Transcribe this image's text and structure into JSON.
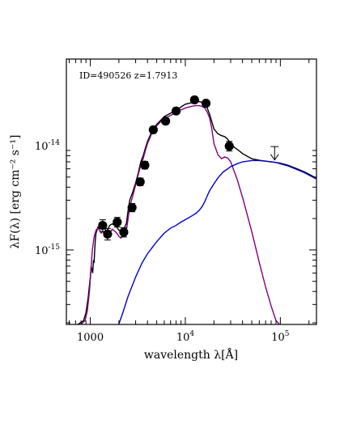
{
  "chart_data": {
    "type": "scatter",
    "annotation": "ID=490526  z=1.7913",
    "xlabel": "wavelength λ[Å]",
    "ylabel": "λF(λ) [erg cm⁻² s⁻¹]",
    "x_scale": "log",
    "y_scale": "log",
    "xlim": [
      560,
      240000
    ],
    "ylim": [
      1.93e-16,
      6.77e-14
    ],
    "x_ticks": [
      {
        "value": 1000,
        "label": "1000"
      },
      {
        "value": 10000,
        "label": "10",
        "exp": "4"
      },
      {
        "value": 100000,
        "label": "10",
        "exp": "5"
      }
    ],
    "y_ticks": [
      {
        "value": 1e-15,
        "label": "10",
        "exp": "-15"
      },
      {
        "value": 1e-14,
        "label": "10",
        "exp": "-14"
      }
    ],
    "grid": false,
    "legend": "none",
    "points": [
      {
        "x": 1350,
        "y": 1.72e-15,
        "err": 1.6e-16
      },
      {
        "x": 1520,
        "y": 1.42e-15,
        "err": 1.3e-16
      },
      {
        "x": 1920,
        "y": 1.85e-15,
        "err": 1.3e-16
      },
      {
        "x": 2250,
        "y": 1.48e-15,
        "err": 1e-16
      },
      {
        "x": 2750,
        "y": 2.55e-15,
        "err": 1.4e-16
      },
      {
        "x": 3350,
        "y": 4.5e-15,
        "err": 2.2e-16
      },
      {
        "x": 3750,
        "y": 6.5e-15,
        "err": 3e-16
      },
      {
        "x": 4600,
        "y": 1.42e-14,
        "err": 5e-16
      },
      {
        "x": 6200,
        "y": 1.72e-14,
        "err": 5e-16
      },
      {
        "x": 8000,
        "y": 2.15e-14,
        "err": 6e-16
      },
      {
        "x": 12500,
        "y": 2.75e-14,
        "err": 8e-16
      },
      {
        "x": 16500,
        "y": 2.55e-14,
        "err": 8e-16
      },
      {
        "x": 29000,
        "y": 9.9e-15,
        "err": 7e-16
      }
    ],
    "upper_limits": [
      {
        "x": 87000,
        "y": 9.8e-15,
        "to": 7.3e-15
      }
    ],
    "series": [
      {
        "color": "#000000",
        "x": [
          720,
          850,
          900,
          950,
          1000,
          1020,
          1040,
          1060,
          1080,
          1095,
          1110,
          1130,
          1150,
          1200,
          1250,
          1300,
          1350,
          1400,
          1450,
          1500,
          1550,
          1600,
          1700,
          1800,
          1900,
          2000,
          2100,
          2200,
          2300,
          2400,
          2500,
          2600,
          2800,
          3000,
          3200,
          3400,
          3600,
          3800,
          4000,
          4500,
          5000,
          5500,
          6000,
          7000,
          8000,
          9000,
          10000,
          11000,
          12000,
          13000,
          14000,
          15000,
          16000,
          17000,
          18000,
          20000,
          22000,
          24000,
          26000,
          28000,
          30000,
          33000,
          37000,
          40000,
          45000,
          50000,
          60000,
          70000,
          80000,
          90000,
          100000,
          120000,
          150000,
          180000,
          210000,
          240000
        ],
        "y": [
          1.9e-16,
          2.1e-16,
          2.5e-16,
          3.5e-16,
          5.5e-16,
          7e-16,
          6.5e-16,
          6e-16,
          8e-16,
          7.5e-16,
          9.5e-16,
          1.25e-15,
          1.45e-15,
          1.65e-15,
          1.6e-15,
          1.62e-15,
          1.72e-15,
          1.65e-15,
          1.55e-15,
          1.5e-15,
          1.62e-15,
          1.72e-15,
          1.78e-15,
          1.72e-15,
          1.65e-15,
          1.55e-15,
          1.52e-15,
          1.6e-15,
          1.65e-15,
          1.8e-15,
          2.4e-15,
          3e-15,
          3.6e-15,
          4.4e-15,
          5.5e-15,
          7e-15,
          8e-15,
          9.5e-15,
          1.1e-14,
          1.4e-14,
          1.6e-14,
          1.75e-14,
          1.9e-14,
          2.05e-14,
          2.2e-14,
          2.35e-14,
          2.5e-14,
          2.55e-14,
          2.6e-14,
          2.62e-14,
          2.65e-14,
          2.6e-14,
          2.5e-14,
          2.3e-14,
          2e-14,
          1.45e-14,
          1.3e-14,
          1.25e-14,
          1.22e-14,
          1.15e-14,
          1.05e-14,
          9.6e-15,
          8.9e-15,
          8.4e-15,
          7.9e-15,
          7.5e-15,
          7.25e-15,
          7.1e-15,
          7e-15,
          6.9e-15,
          6.8e-15,
          6.5e-15,
          6e-15,
          5.6e-15,
          5.2e-15,
          4.85e-15
        ]
      },
      {
        "color": "#800080",
        "x": [
          780,
          880,
          930,
          980,
          1010,
          1050,
          1100,
          1150,
          1200,
          1250,
          1300,
          1350,
          1400,
          1450,
          1500,
          1600,
          1700,
          1800,
          1900,
          2000,
          2100,
          2200,
          2300,
          2400,
          2500,
          2600,
          2800,
          3000,
          3200,
          3400,
          3600,
          3800,
          4000,
          4500,
          5000,
          5500,
          6000,
          7000,
          8000,
          9000,
          10000,
          11000,
          12000,
          13000,
          14000,
          15000,
          16000,
          17000,
          18000,
          19000,
          20000,
          22000,
          24000,
          26000,
          28000,
          30000,
          35000,
          40000,
          50000,
          60000,
          70000,
          80000,
          90000,
          100000
        ],
        "y": [
          1.9e-16,
          2.1e-16,
          2.6e-16,
          4e-16,
          6e-16,
          1e-15,
          1.35e-15,
          1.55e-15,
          1.62e-15,
          1.55e-15,
          1.45e-15,
          1.5e-15,
          1.45e-15,
          1.35e-15,
          1.3e-15,
          1.45e-15,
          1.58e-15,
          1.52e-15,
          1.45e-15,
          1.35e-15,
          1.3e-15,
          1.38e-15,
          1.42e-15,
          1.55e-15,
          2e-15,
          2.6e-15,
          3.3e-15,
          4.2e-15,
          5.3e-15,
          6.5e-15,
          7.5e-15,
          9e-15,
          1.05e-14,
          1.35e-14,
          1.55e-14,
          1.7e-14,
          1.82e-14,
          1.95e-14,
          2.08e-14,
          2.2e-14,
          2.3e-14,
          2.35e-14,
          2.4e-14,
          2.42e-14,
          2.42e-14,
          2.38e-14,
          2.3e-14,
          2.1e-14,
          1.85e-14,
          1.45e-14,
          1.05e-14,
          8.2e-15,
          7.5e-15,
          7.8e-15,
          7.6e-15,
          7e-15,
          4.8e-15,
          3.2e-15,
          1.5e-15,
          7.6e-16,
          4.4e-16,
          2.9e-16,
          2.1e-16,
          1.9e-16
        ]
      },
      {
        "color": "#0000cd",
        "x": [
          1980,
          2200,
          2500,
          3000,
          3500,
          4000,
          4500,
          5000,
          6000,
          7000,
          8000,
          9000,
          10000,
          11000,
          12000,
          13000,
          14000,
          15000,
          16000,
          17000,
          18000,
          20000,
          22000,
          25000,
          28000,
          30000,
          35000,
          40000,
          50000,
          60000,
          70000,
          80000,
          90000,
          100000,
          120000,
          150000,
          180000,
          210000,
          240000
        ],
        "y": [
          1.9e-16,
          2.5e-16,
          3.6e-16,
          5.5e-16,
          7.5e-16,
          9.2e-16,
          1.06e-15,
          1.2e-15,
          1.45e-15,
          1.62e-15,
          1.72e-15,
          1.85e-15,
          1.95e-15,
          2.05e-15,
          2.15e-15,
          2.25e-15,
          2.4e-15,
          2.6e-15,
          2.9e-15,
          3.3e-15,
          3.7e-15,
          4.3e-15,
          4.9e-15,
          5.6e-15,
          6e-15,
          6.3e-15,
          6.7e-15,
          7e-15,
          7.2e-15,
          7.2e-15,
          7.1e-15,
          7e-15,
          6.9e-15,
          6.7e-15,
          6.4e-15,
          5.9e-15,
          5.5e-15,
          5.1e-15,
          4.8e-15
        ]
      }
    ]
  }
}
